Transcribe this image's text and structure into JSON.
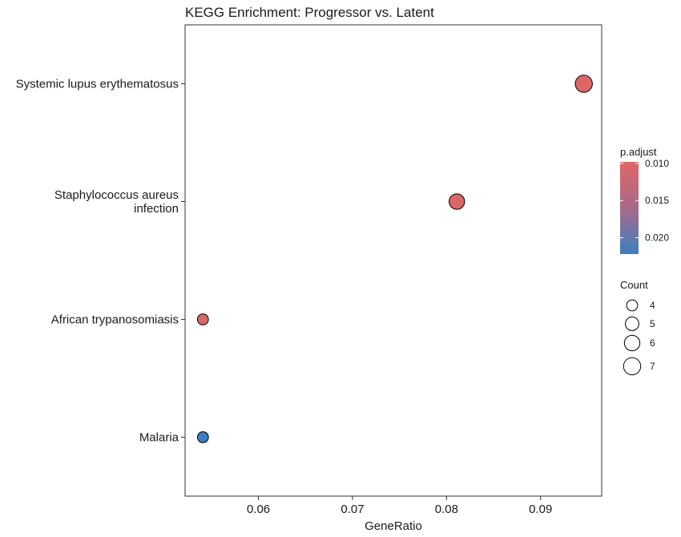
{
  "chart_data": {
    "type": "scatter",
    "title": "KEGG Enrichment: Progressor vs. Latent",
    "xlabel": "GeneRatio",
    "ylabel": "",
    "xlim": [
      0.0522,
      0.0965
    ],
    "x_ticks": [
      {
        "value": 0.06,
        "label": "0.06"
      },
      {
        "value": 0.07,
        "label": "0.07"
      },
      {
        "value": 0.08,
        "label": "0.08"
      },
      {
        "value": 0.09,
        "label": "0.09"
      }
    ],
    "categories": [
      "Systemic lupus erythematosus",
      "Staphylococcus aureus infection",
      "African trypanosomiasis",
      "Malaria"
    ],
    "category_label_lines": [
      [
        "Systemic lupus erythematosus"
      ],
      [
        "Staphylococcus aureus",
        "infection"
      ],
      [
        "African trypanosomiasis"
      ],
      [
        "Malaria"
      ]
    ],
    "points": [
      {
        "category": "Systemic lupus erythematosus",
        "x": 0.0946,
        "count": 7,
        "p_adjust": 0.0101
      },
      {
        "category": "Staphylococcus aureus infection",
        "x": 0.0811,
        "count": 6,
        "p_adjust": 0.0102
      },
      {
        "category": "African trypanosomiasis",
        "x": 0.0541,
        "count": 4,
        "p_adjust": 0.0103
      },
      {
        "category": "Malaria",
        "x": 0.0541,
        "count": 4,
        "p_adjust": 0.0222
      }
    ],
    "color_legend": {
      "title": "p.adjust",
      "range": [
        0.0098,
        0.0222
      ],
      "ticks": [
        {
          "value": 0.01,
          "label": "0.010"
        },
        {
          "value": 0.015,
          "label": "0.015"
        },
        {
          "value": 0.02,
          "label": "0.020"
        }
      ],
      "low_color": "#e06666",
      "high_color": "#3d7fbf"
    },
    "size_legend": {
      "title": "Count",
      "entries": [
        {
          "value": 4,
          "label": "4"
        },
        {
          "value": 5,
          "label": "5"
        },
        {
          "value": 6,
          "label": "6"
        },
        {
          "value": 7,
          "label": "7"
        }
      ]
    },
    "grid": false,
    "legend_position": "right"
  }
}
